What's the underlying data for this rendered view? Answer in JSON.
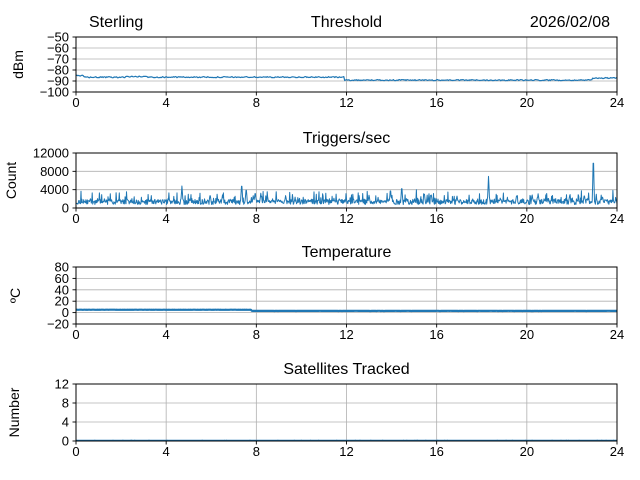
{
  "figure": {
    "background": "#ffffff",
    "line_color": "#1f77b4",
    "grid_color": "#b0b0b0",
    "spine_color": "#000000",
    "header": {
      "left": "Sterling",
      "center": "Threshold",
      "right": "2026/02/08"
    }
  },
  "chart_data": [
    {
      "type": "line",
      "title": "Threshold",
      "title_left": "Sterling",
      "title_right": "2026/02/08",
      "ylabel": "dBm",
      "xlim": [
        0,
        24
      ],
      "ylim": [
        -100,
        -50
      ],
      "xticks": [
        0,
        4,
        8,
        12,
        16,
        20,
        24
      ],
      "yticks": [
        -50,
        -60,
        -70,
        -80,
        -90,
        -100
      ],
      "grid": true,
      "legend": "none",
      "series": {
        "name": "threshold_dbm",
        "kind": "stepped_levels",
        "segments": [
          [
            0,
            0.35,
            -85.2
          ],
          [
            0.35,
            2.2,
            -86.6
          ],
          [
            2.2,
            3.2,
            -86.0
          ],
          [
            3.2,
            11.9,
            -86.5
          ],
          [
            11.9,
            22.9,
            -89.2
          ],
          [
            22.9,
            24,
            -87.3
          ]
        ],
        "noise_amp": 0.5,
        "linewidth": 1.2
      }
    },
    {
      "type": "line",
      "title": "Triggers/sec",
      "ylabel": "Count",
      "xlim": [
        0,
        24
      ],
      "ylim": [
        0,
        12000
      ],
      "xticks": [
        0,
        4,
        8,
        12,
        16,
        20,
        24
      ],
      "yticks": [
        0,
        4000,
        8000,
        12000
      ],
      "grid": true,
      "legend": "none",
      "series": {
        "name": "triggers_per_sec",
        "kind": "noisy_baseline_with_spikes",
        "baseline": 1300,
        "noise_amp": 550,
        "spikes": [
          [
            4.7,
            4800
          ],
          [
            5.95,
            3000
          ],
          [
            6.5,
            2850
          ],
          [
            7.35,
            5600
          ],
          [
            7.55,
            4500
          ],
          [
            7.95,
            3600
          ],
          [
            8.2,
            3200
          ],
          [
            9.3,
            2700
          ],
          [
            13.0,
            2800
          ],
          [
            13.95,
            4300
          ],
          [
            14.45,
            4900
          ],
          [
            15.45,
            3400
          ],
          [
            15.75,
            3100
          ],
          [
            16.9,
            2600
          ],
          [
            18.3,
            6900
          ],
          [
            19.55,
            2950
          ],
          [
            20.5,
            3100
          ],
          [
            21.9,
            2700
          ],
          [
            22.55,
            2950
          ],
          [
            22.95,
            11900
          ],
          [
            23.35,
            2600
          ]
        ],
        "linewidth": 1.0
      }
    },
    {
      "type": "line",
      "title": "Temperature",
      "ylabel": "ºC",
      "xlim": [
        0,
        24
      ],
      "ylim": [
        -20,
        80
      ],
      "xticks": [
        0,
        4,
        8,
        12,
        16,
        20,
        24
      ],
      "yticks": [
        -20,
        0,
        20,
        40,
        60,
        80
      ],
      "grid": true,
      "legend": "none",
      "series": {
        "name": "temperature_c",
        "kind": "stepped_levels",
        "segments": [
          [
            0,
            7.8,
            5.0
          ],
          [
            7.8,
            24,
            3.0
          ]
        ],
        "noise_amp": 0.12,
        "linewidth": 2.2
      }
    },
    {
      "type": "line",
      "title": "Satellites Tracked",
      "ylabel": "Number",
      "xlim": [
        0,
        24
      ],
      "ylim": [
        0,
        12
      ],
      "xticks": [
        0,
        4,
        8,
        12,
        16,
        20,
        24
      ],
      "yticks": [
        0,
        4,
        8,
        12
      ],
      "grid": true,
      "legend": "none",
      "series": {
        "name": "satellites_tracked",
        "kind": "stepped_levels",
        "segments": [
          [
            0,
            24,
            0.12
          ]
        ],
        "noise_amp": 0.02,
        "linewidth": 1.4
      }
    }
  ]
}
